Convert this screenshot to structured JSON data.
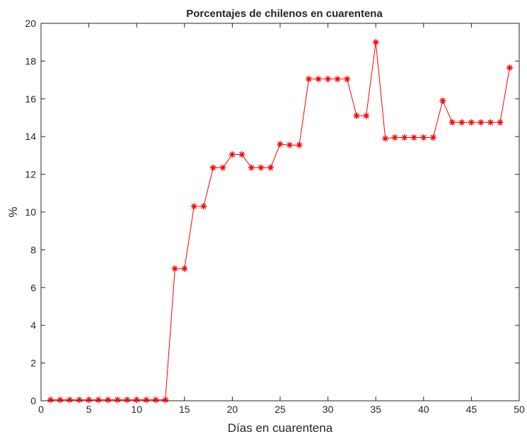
{
  "chart_data": {
    "type": "line",
    "title": "Porcentajes de chilenos en cuarentena",
    "xlabel": "Días en cuarentena",
    "ylabel": "%",
    "xlim": [
      0,
      50
    ],
    "ylim": [
      0,
      20
    ],
    "xticks": [
      0,
      5,
      10,
      15,
      20,
      25,
      30,
      35,
      40,
      45,
      50
    ],
    "yticks": [
      0,
      2,
      4,
      6,
      8,
      10,
      12,
      14,
      16,
      18,
      20
    ],
    "grid": false,
    "series": [
      {
        "color": "#ff0000",
        "marker": "asterisk",
        "x": [
          1,
          2,
          3,
          4,
          5,
          6,
          7,
          8,
          9,
          10,
          11,
          12,
          13,
          14,
          15,
          16,
          17,
          18,
          19,
          20,
          21,
          22,
          23,
          24,
          25,
          26,
          27,
          28,
          29,
          30,
          31,
          32,
          33,
          34,
          35,
          36,
          37,
          38,
          39,
          40,
          41,
          42,
          43,
          44,
          45,
          46,
          47,
          48,
          49
        ],
        "y": [
          0.05,
          0.05,
          0.05,
          0.05,
          0.05,
          0.05,
          0.05,
          0.05,
          0.05,
          0.05,
          0.05,
          0.05,
          0.05,
          7.0,
          7.0,
          10.3,
          10.3,
          12.35,
          12.35,
          13.05,
          13.05,
          12.35,
          12.35,
          12.35,
          13.6,
          13.55,
          13.55,
          17.05,
          17.05,
          17.05,
          17.05,
          17.05,
          15.1,
          15.1,
          19.0,
          13.9,
          13.95,
          13.95,
          13.95,
          13.95,
          13.95,
          15.9,
          14.75,
          14.75,
          14.75,
          14.75,
          14.75,
          14.75,
          17.65
        ]
      }
    ]
  }
}
